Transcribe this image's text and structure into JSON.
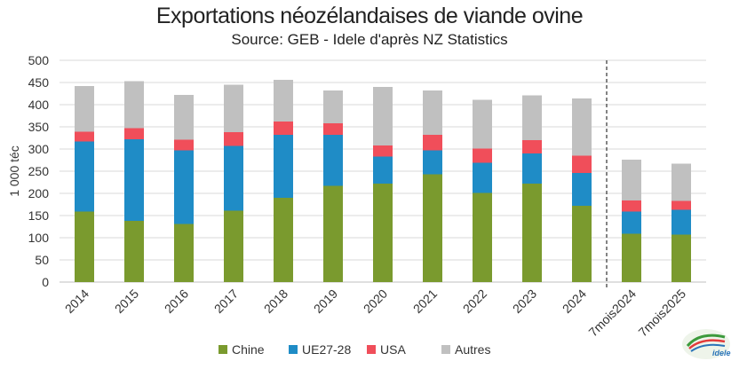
{
  "chart_data": {
    "type": "bar",
    "stacked": true,
    "title": "Exportations néozélandaises de viande ovine",
    "subtitle": "Source: GEB - Idele d'après NZ Statistics",
    "ylabel": "1 000 téc",
    "xlabel": "",
    "ylim": [
      0,
      500
    ],
    "yticks": [
      0,
      50,
      100,
      150,
      200,
      250,
      300,
      350,
      400,
      450,
      500
    ],
    "categories": [
      "2014",
      "2015",
      "2016",
      "2017",
      "2018",
      "2019",
      "2020",
      "2021",
      "2022",
      "2023",
      "2024",
      "7mois2024",
      "7mois2025"
    ],
    "series": [
      {
        "name": "Chine",
        "color": "#7a9a2e",
        "values": [
          159,
          138,
          131,
          161,
          190,
          217,
          222,
          243,
          201,
          222,
          172,
          109,
          107
        ]
      },
      {
        "name": "UE27-28",
        "color": "#1f8cc6",
        "values": [
          158,
          184,
          166,
          146,
          142,
          115,
          61,
          54,
          68,
          68,
          74,
          50,
          56
        ]
      },
      {
        "name": "USA",
        "color": "#f04e5a",
        "values": [
          22,
          25,
          24,
          31,
          30,
          26,
          25,
          35,
          32,
          30,
          39,
          25,
          20
        ]
      },
      {
        "name": "Autres",
        "color": "#c0c0c0",
        "values": [
          103,
          106,
          101,
          107,
          94,
          74,
          132,
          100,
          110,
          101,
          129,
          92,
          84
        ]
      }
    ],
    "separator_after_index": 10,
    "grid": true,
    "legend_position": "bottom"
  },
  "logo": {
    "text": "idele"
  }
}
